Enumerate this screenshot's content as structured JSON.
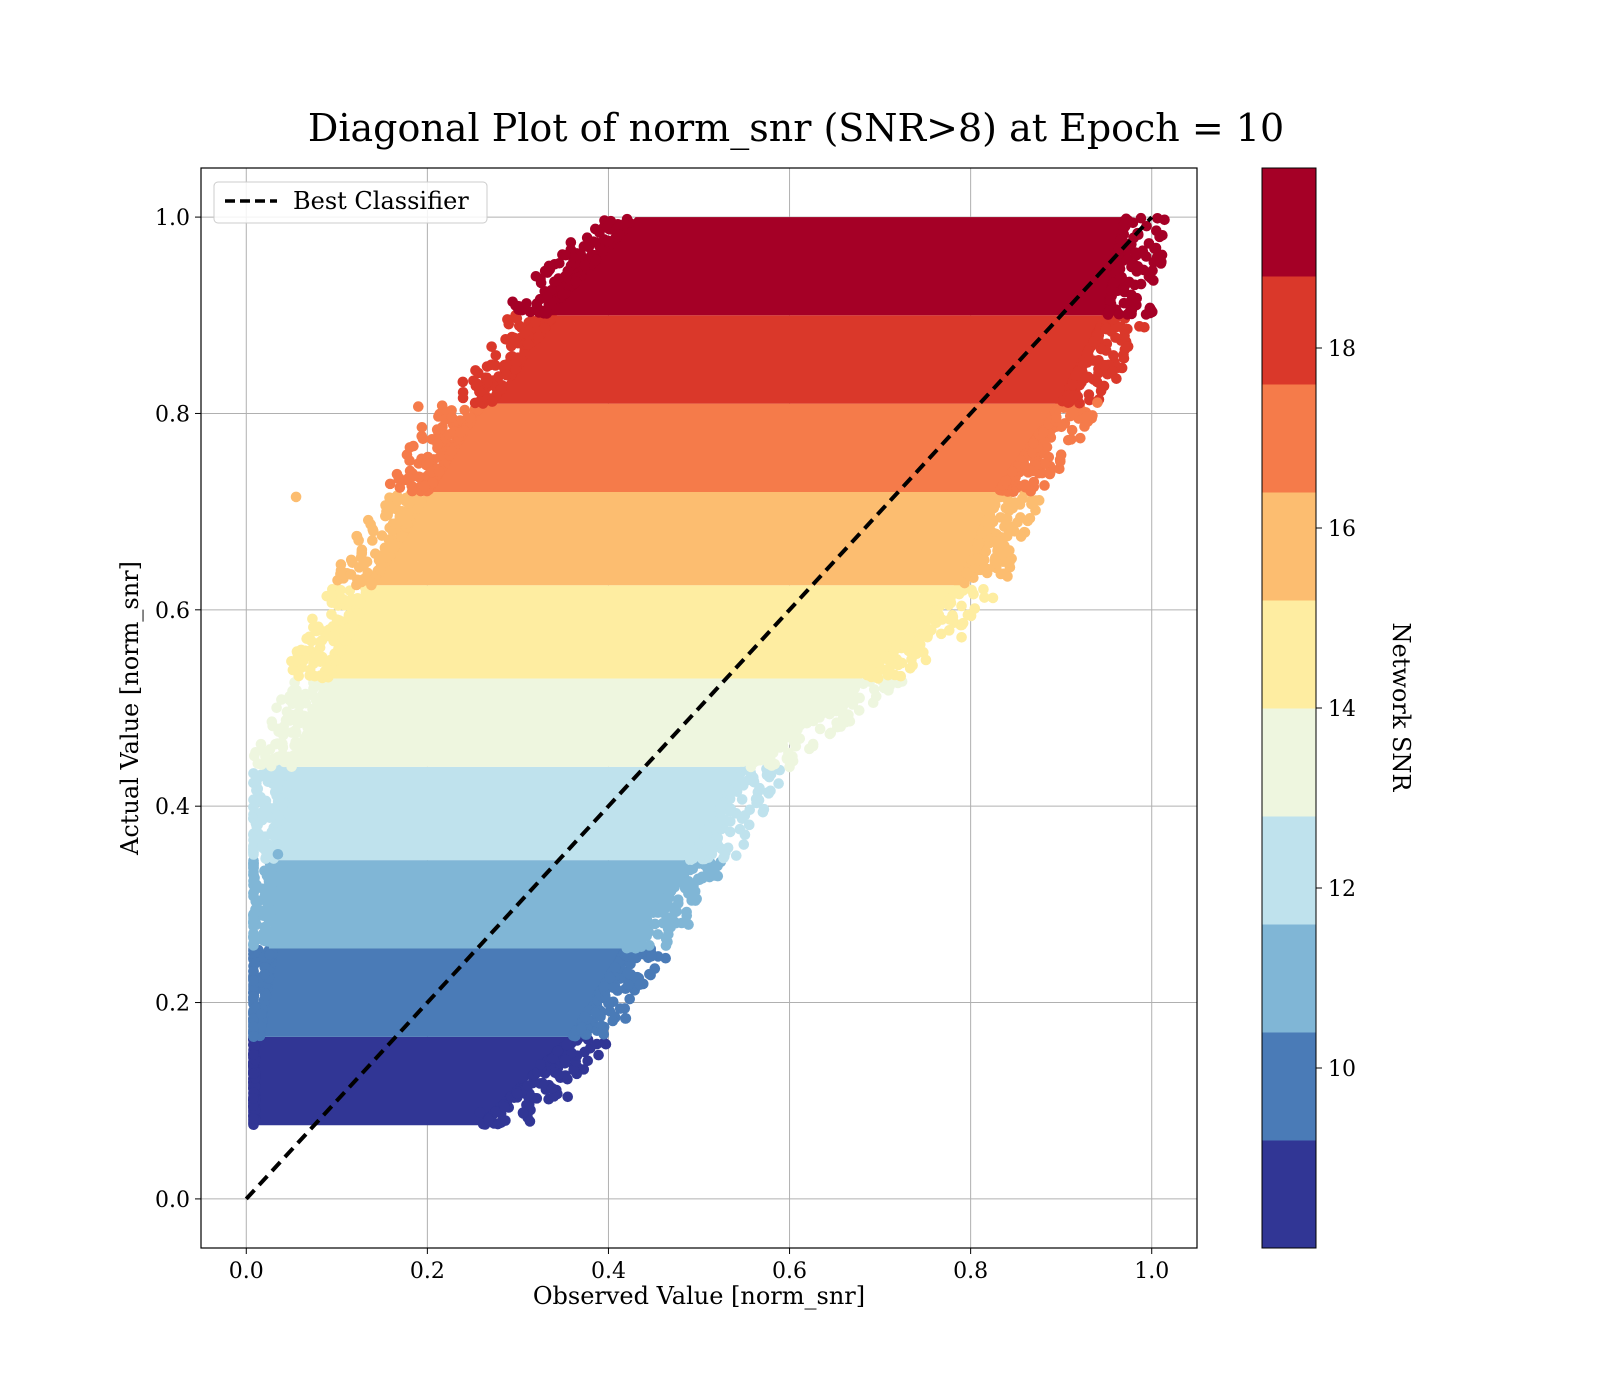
{
  "chart_data": {
    "type": "scatter",
    "title": "Diagonal Plot of norm_snr (SNR>8) at Epoch = 10",
    "xlabel": "Observed Value [norm_snr]",
    "ylabel": "Actual Value [norm_snr]",
    "xlim": [
      -0.05,
      1.05
    ],
    "ylim": [
      -0.05,
      1.05
    ],
    "x_ticks": [
      "0.0",
      "0.2",
      "0.4",
      "0.6",
      "0.8",
      "1.0"
    ],
    "y_ticks": [
      "0.0",
      "0.2",
      "0.4",
      "0.6",
      "0.8",
      "1.0"
    ],
    "grid": true,
    "legend": {
      "position": "top-left",
      "entries": [
        "Best Classifier"
      ]
    },
    "reference_line": {
      "name": "Best Classifier",
      "x": [
        0.0,
        1.0
      ],
      "y": [
        0.0,
        1.0
      ],
      "style": "dashed",
      "color": "#000000"
    },
    "colorbar": {
      "label": "Network SNR",
      "ticks": [
        "10",
        "12",
        "14",
        "16",
        "18"
      ],
      "range": [
        8,
        20
      ],
      "colors": [
        "#313695",
        "#4a7bb7",
        "#80b6d6",
        "#bfe2ed",
        "#eef6df",
        "#feeda1",
        "#fcbd70",
        "#f57b4a",
        "#da382a",
        "#a50026"
      ]
    },
    "bands": [
      {
        "snr_range": [
          8,
          9.2
        ],
        "y": [
          0.075,
          0.165
        ],
        "x_min": [
          0.01,
          0.01
        ],
        "x_max": [
          0.26,
          0.36
        ],
        "color": "#313695"
      },
      {
        "snr_range": [
          9.2,
          10.4
        ],
        "y": [
          0.165,
          0.255
        ],
        "x_min": [
          0.015,
          0.03
        ],
        "x_max": [
          0.36,
          0.42
        ],
        "color": "#4a7bb7"
      },
      {
        "snr_range": [
          10.4,
          11.6
        ],
        "y": [
          0.255,
          0.345
        ],
        "x_min": [
          0.025,
          0.03
        ],
        "x_max": [
          0.42,
          0.49
        ],
        "color": "#80b6d6"
      },
      {
        "snr_range": [
          11.6,
          12.8
        ],
        "y": [
          0.345,
          0.44
        ],
        "x_min": [
          0.03,
          0.05
        ],
        "x_max": [
          0.49,
          0.55
        ],
        "color": "#bfe2ed"
      },
      {
        "snr_range": [
          12.8,
          14.0
        ],
        "y": [
          0.44,
          0.53
        ],
        "x_min": [
          0.05,
          0.1
        ],
        "x_max": [
          0.55,
          0.68
        ],
        "color": "#eef6df"
      },
      {
        "snr_range": [
          14.0,
          15.2
        ],
        "y": [
          0.53,
          0.625
        ],
        "x_min": [
          0.09,
          0.14
        ],
        "x_max": [
          0.68,
          0.79
        ],
        "color": "#feeda1"
      },
      {
        "snr_range": [
          15.2,
          16.4
        ],
        "y": [
          0.625,
          0.72
        ],
        "x_min": [
          0.14,
          0.2
        ],
        "x_max": [
          0.79,
          0.83
        ],
        "color": "#fcbd70"
      },
      {
        "snr_range": [
          16.4,
          17.6
        ],
        "y": [
          0.72,
          0.81
        ],
        "x_min": [
          0.2,
          0.26
        ],
        "x_max": [
          0.83,
          0.9
        ],
        "color": "#f57b4a"
      },
      {
        "snr_range": [
          17.6,
          18.8
        ],
        "y": [
          0.81,
          0.9
        ],
        "x_min": [
          0.27,
          0.34
        ],
        "x_max": [
          0.9,
          0.95
        ],
        "color": "#da382a"
      },
      {
        "snr_range": [
          18.8,
          20.0
        ],
        "y": [
          0.9,
          1.0
        ],
        "x_min": [
          0.33,
          0.43
        ],
        "x_max": [
          0.95,
          0.97
        ],
        "color": "#a50026"
      }
    ],
    "outliers": [
      {
        "x": 0.055,
        "y": 0.715,
        "color": "#fcbd70"
      },
      {
        "x": 0.19,
        "y": 0.807,
        "color": "#f57b4a"
      },
      {
        "x": 0.325,
        "y": 0.937,
        "color": "#a50026"
      },
      {
        "x": 0.355,
        "y": 0.104,
        "color": "#313695"
      },
      {
        "x": 0.37,
        "y": 0.173,
        "color": "#4a7bb7"
      },
      {
        "x": 0.418,
        "y": 0.194,
        "color": "#4a7bb7"
      },
      {
        "x": 0.49,
        "y": 0.335,
        "color": "#80b6d6"
      },
      {
        "x": 0.325,
        "y": 0.137,
        "color": "#313695"
      },
      {
        "x": 0.258,
        "y": 0.088,
        "color": "#313695"
      },
      {
        "x": 0.79,
        "y": 0.572,
        "color": "#feeda1"
      },
      {
        "x": 0.665,
        "y": 0.493,
        "color": "#eef6df"
      },
      {
        "x": 0.827,
        "y": 0.65,
        "color": "#fcbd70"
      },
      {
        "x": 0.9,
        "y": 0.758,
        "color": "#f57b4a"
      },
      {
        "x": 0.94,
        "y": 0.811,
        "color": "#f57b4a"
      },
      {
        "x": 0.035,
        "y": 0.351,
        "color": "#80b6d6"
      },
      {
        "x": 0.08,
        "y": 0.58,
        "color": "#feeda1"
      },
      {
        "x": 0.64,
        "y": 0.54,
        "color": "#feeda1"
      },
      {
        "x": 0.6,
        "y": 0.44,
        "color": "#eef6df"
      }
    ]
  }
}
